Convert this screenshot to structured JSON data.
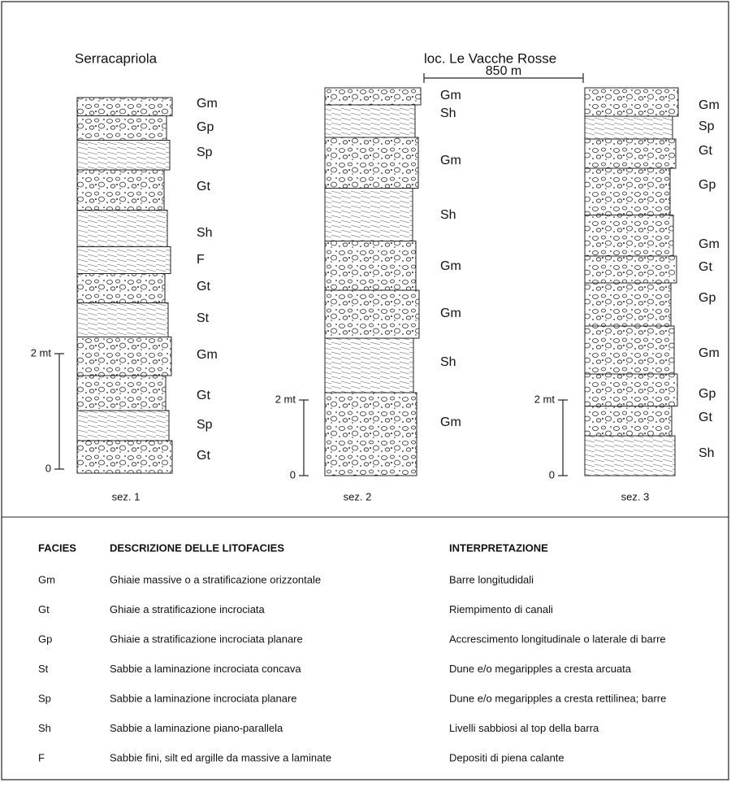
{
  "sites": [
    "Serracapriola",
    "loc. Le Vacche Rosse"
  ],
  "distance": "850 m",
  "sections": [
    {
      "name": "sez. 1",
      "scale_top": "2 mt",
      "scale_bottom": "0",
      "facies": [
        "Gm",
        "Gp",
        "Sp",
        "Gt",
        "Sh",
        "F",
        "Gt",
        "St",
        "Gm",
        "Gt",
        "Sp",
        "Gt"
      ]
    },
    {
      "name": "sez. 2",
      "scale_top": "2 mt",
      "scale_bottom": "0",
      "facies": [
        "Gm",
        "Sh",
        "Gm",
        "Sh",
        "Gm",
        "Gm",
        "Sh",
        "Gm"
      ]
    },
    {
      "name": "sez. 3",
      "scale_top": "2 mt",
      "scale_bottom": "0",
      "facies": [
        "Gm",
        "Sp",
        "Gt",
        "Gp",
        "Gm",
        "Gt",
        "Gp",
        "Gm",
        "Gp",
        "Gt",
        "Sh"
      ]
    }
  ],
  "table": {
    "header": [
      "FACIES",
      "DESCRIZIONE DELLE LITOFACIES",
      "INTERPRETAZIONE"
    ],
    "rows": [
      [
        "Gm",
        "Ghiaie massive o a stratificazione orizzontale",
        "Barre longitudidali"
      ],
      [
        "Gt",
        "Ghiaie a stratificazione incrociata",
        "Riempimento di canali"
      ],
      [
        "Gp",
        "Ghiaie a stratificazione incrociata planare",
        "Accrescimento longitudinale o laterale di barre"
      ],
      [
        "St",
        "Sabbie a laminazione incrociata concava",
        "Dune e/o megaripples a cresta arcuata"
      ],
      [
        "Sp",
        "Sabbie a laminazione incrociata planare",
        "Dune e/o megaripples a cresta rettilinea; barre"
      ],
      [
        "Sh",
        "Sabbie a laminazione piano-parallela",
        "Livelli sabbiosi al top della barra"
      ],
      [
        "F",
        "Sabbie fini, silt ed argille da massive a laminate",
        "Depositi di piena calante"
      ]
    ]
  }
}
